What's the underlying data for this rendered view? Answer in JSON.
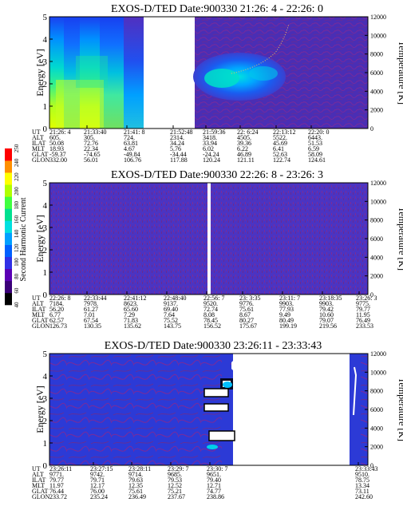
{
  "chart_data": [
    {
      "type": "heatmap",
      "title": "EXOS-D/TED   Date:900330  21:26: 4 - 22:26: 0",
      "ylabel": "Energy [eV]",
      "ylabel_right": "Temperature [K]",
      "ylim": [
        0,
        5
      ],
      "ylim_right": [
        0,
        12000
      ],
      "yticks": [
        "0",
        "1",
        "2",
        "3",
        "4",
        "5"
      ],
      "yticks_right": [
        "0",
        "2000",
        "4000",
        "6000",
        "8000",
        "10000",
        "12000"
      ],
      "row_labels": [
        "UT",
        "ALT",
        "ILAT",
        "MLT",
        "GLAT",
        "GLON"
      ],
      "columns": [
        {
          "ut": "21:26: 4",
          "alt": "605.",
          "ilat": "50.08",
          "mlt": "18.93",
          "glat": "-59.37",
          "glon": "332.00"
        },
        {
          "ut": "21:33:40",
          "alt": "305.",
          "ilat": "72.76",
          "mlt": "22.34",
          "glat": "-74.65",
          "glon": "56.01"
        },
        {
          "ut": "21:41: 8",
          "alt": "724.",
          "ilat": "63.81",
          "mlt": "4.67",
          "glat": "-49.84",
          "glon": "106.76"
        },
        {
          "ut": "21:52:48",
          "alt": "2314.",
          "ilat": "34.24",
          "mlt": "5.76",
          "glat": "-34.44",
          "glon": "117.88"
        },
        {
          "ut": "21:59:36",
          "alt": "3418.",
          "ilat": "33.94",
          "mlt": "6.02",
          "glat": "-24.24",
          "glon": "120.24"
        },
        {
          "ut": "22: 6:24",
          "alt": "4505.",
          "ilat": "39.36",
          "mlt": "6.22",
          "glat": "46.89",
          "glon": "121.11"
        },
        {
          "ut": "22:13:12",
          "alt": "5522.",
          "ilat": "45.69",
          "mlt": "6.41",
          "glat": "52.63",
          "glon": "122.74"
        },
        {
          "ut": "22:20: 0",
          "alt": "6443.",
          "ilat": "51.53",
          "mlt": "6.59",
          "glat": "58.09",
          "glon": "124.61"
        }
      ],
      "data_gap": [
        "21:41: 8",
        "21:52:48"
      ]
    },
    {
      "type": "heatmap",
      "title": "EXOS-D/TED   Date:900330  22:26: 8 - 23:26: 3",
      "ylabel": "Energy [eV]",
      "ylabel_right": "Temperature [K]",
      "ylim": [
        0,
        5
      ],
      "ylim_right": [
        0,
        12000
      ],
      "yticks": [
        "0",
        "1",
        "2",
        "3",
        "4",
        "5"
      ],
      "yticks_right": [
        "0",
        "2000",
        "4000",
        "6000",
        "8000",
        "10000",
        "12000"
      ],
      "row_labels": [
        "UT",
        "ALT",
        "ILAT",
        "MLT",
        "GLAT",
        "GLON"
      ],
      "columns": [
        {
          "ut": "22:26: 8",
          "alt": "7184.",
          "ilat": "56.20",
          "mlt": "6.77",
          "glat": "62.57",
          "glon": "126.73"
        },
        {
          "ut": "22:33:44",
          "alt": "7978.",
          "ilat": "61.27",
          "mlt": "7.01",
          "glat": "67.54",
          "glon": "130.35"
        },
        {
          "ut": "22:41:12",
          "alt": "8623.",
          "ilat": "65.60",
          "mlt": "7.29",
          "glat": "71.83",
          "glon": "135.62"
        },
        {
          "ut": "22:48:40",
          "alt": "9137.",
          "ilat": "69.40",
          "mlt": "7.64",
          "glat": "75.52",
          "glon": "143.75"
        },
        {
          "ut": "22:56: 7",
          "alt": "9520.",
          "ilat": "72.74",
          "mlt": "8.08",
          "glat": "78.45",
          "glon": "156.52"
        },
        {
          "ut": "23: 3:35",
          "alt": "9776.",
          "ilat": "75.61",
          "mlt": "8.67",
          "glat": "80.27",
          "glon": "175.67"
        },
        {
          "ut": "23:11: 7",
          "alt": "9903.",
          "ilat": "77.93",
          "mlt": "9.49",
          "glat": "80.49",
          "glon": "199.19"
        },
        {
          "ut": "23:18:35",
          "alt": "9903.",
          "ilat": "79.42",
          "mlt": "10.60",
          "glat": "79.07",
          "glon": "219.56"
        },
        {
          "ut": "23:26: 3",
          "alt": "9775.",
          "ilat": "79.77",
          "mlt": "11.95",
          "glat": "76.49",
          "glon": "233.53"
        }
      ],
      "data_gap": [
        "22:56: 7"
      ]
    },
    {
      "type": "heatmap",
      "title": "EXOS-D/TED   Date:900330  23:26:11 - 23:33:43",
      "ylabel": "Energy [eV]",
      "ylabel_right": "Temperature [K]",
      "ylim": [
        0,
        5
      ],
      "ylim_right": [
        0,
        12000
      ],
      "yticks": [
        "0",
        "1",
        "2",
        "3",
        "4",
        "5"
      ],
      "yticks_right": [
        "0",
        "2000",
        "4000",
        "6000",
        "8000",
        "10000",
        "12000"
      ],
      "row_labels": [
        "UT",
        "ALT",
        "ILAT",
        "MLT",
        "GLAT",
        "GLON"
      ],
      "columns": [
        {
          "ut": "23:26:11",
          "alt": "9771.",
          "ilat": "79.77",
          "mlt": "11.97",
          "glat": "76.44",
          "glon": "233.72"
        },
        {
          "ut": "23:27:15",
          "alt": "9742.",
          "ilat": "79.71",
          "mlt": "12.17",
          "glat": "76.00",
          "glon": "235.24"
        },
        {
          "ut": "23:28:11",
          "alt": "9714.",
          "ilat": "79.63",
          "mlt": "12.35",
          "glat": "75.61",
          "glon": "236.49"
        },
        {
          "ut": "23:29: 7",
          "alt": "9685.",
          "ilat": "79.53",
          "mlt": "12.52",
          "glat": "75.21",
          "glon": "237.67"
        },
        {
          "ut": "23:30: 7",
          "alt": "9651.",
          "ilat": "79.40",
          "mlt": "12.71",
          "glat": "74.77",
          "glon": "238.86"
        },
        {
          "ut": "23:33:43",
          "alt": "9510.",
          "ilat": "78.75",
          "mlt": "13.34",
          "glat": "73.11",
          "glon": "242.60"
        }
      ]
    }
  ],
  "colorbar": {
    "label": "Second Harmonic Current",
    "ticks": [
      "40",
      "60",
      "80",
      "100",
      "120",
      "140",
      "160",
      "180",
      "200",
      "220",
      "240",
      "250"
    ],
    "colors": [
      "#000000",
      "#3a0078",
      "#5a00b4",
      "#3030e6",
      "#0060ff",
      "#00a0ff",
      "#00e0e0",
      "#00e090",
      "#40ff40",
      "#b0ff00",
      "#ffff00",
      "#ff9000",
      "#ff0000"
    ]
  }
}
